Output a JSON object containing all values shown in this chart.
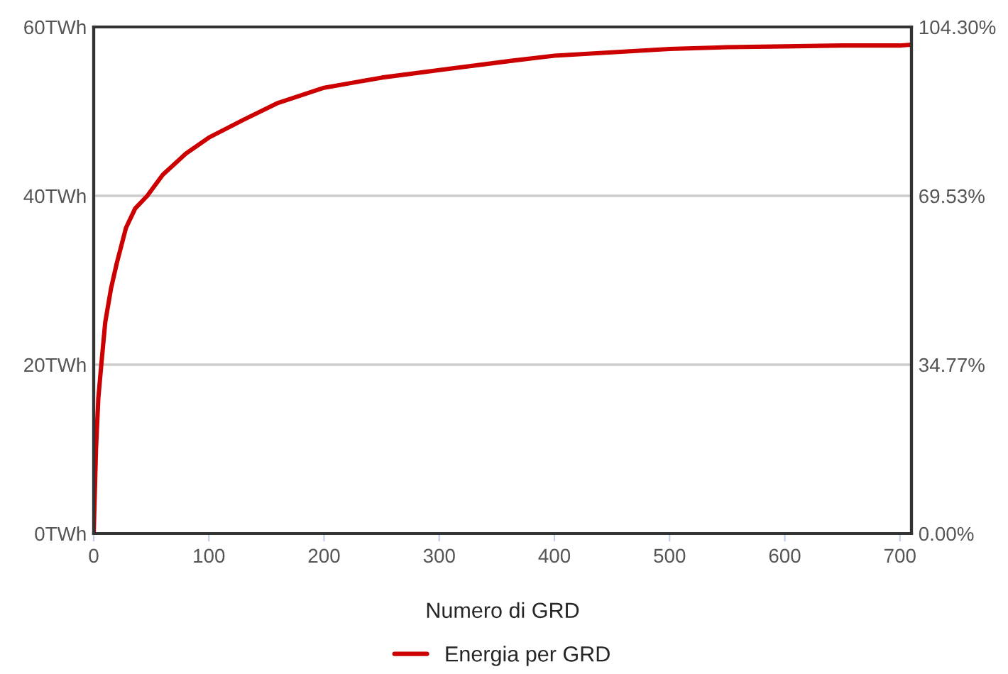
{
  "chart_data": {
    "type": "line",
    "xlabel": "Numero di GRD",
    "x": [
      0,
      1,
      2,
      4,
      6.6,
      10,
      15,
      20,
      28,
      36,
      46.5,
      60,
      80,
      100,
      130,
      160,
      200,
      250,
      300,
      363,
      400,
      450,
      500,
      550,
      600,
      650,
      700,
      710
    ],
    "series": [
      {
        "name": "Energia per GRD",
        "color": "#cc0000",
        "values": [
          0,
          5,
          10,
          16,
          20,
          25,
          29,
          32,
          36.2,
          38.5,
          40,
          42.5,
          45,
          46.9,
          49,
          51,
          52.8,
          54,
          54.9,
          56,
          56.6,
          57,
          57.4,
          57.6,
          57.7,
          57.8,
          57.8,
          57.9
        ]
      }
    ],
    "xlim": [
      0,
      710
    ],
    "xticks": [
      0,
      100,
      200,
      300,
      400,
      500,
      600,
      700
    ],
    "ylim": [
      0,
      60
    ],
    "yticks": [
      {
        "value": 0,
        "label": "0TWh"
      },
      {
        "value": 20,
        "label": "20TWh"
      },
      {
        "value": 40,
        "label": "40TWh"
      },
      {
        "value": 60,
        "label": "60TWh"
      }
    ],
    "y2lim": [
      0,
      104.3
    ],
    "y2ticks": [
      {
        "value": 0,
        "label": "0.00%"
      },
      {
        "value": 34.77,
        "label": "34.77%"
      },
      {
        "value": 69.53,
        "label": "69.53%"
      },
      {
        "value": 104.3,
        "label": "104.30%"
      }
    ],
    "grid": "y",
    "legend": "bottom"
  }
}
